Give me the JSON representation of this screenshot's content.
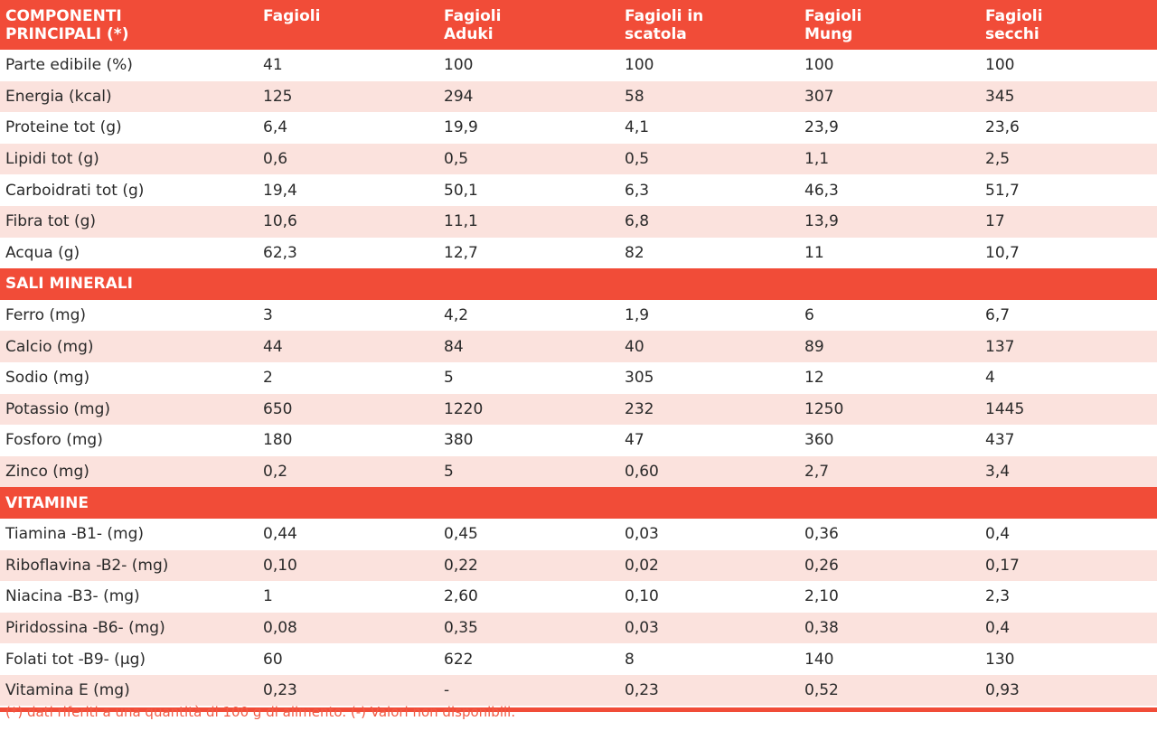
{
  "headers": [
    "COMPONENTI\nPRINCIPALI (*)",
    "Fagioli",
    "Fagioli\nAduki",
    "Fagioli in\nscatola",
    "Fagioli\nMung",
    "Fagioli\nsecchi"
  ],
  "main_rows": [
    [
      "Parte edibile (%)",
      "41",
      "100",
      "100",
      "100",
      "100"
    ],
    [
      "Energia (kcal)",
      "125",
      "294",
      "58",
      "307",
      "345"
    ],
    [
      "Proteine tot (g)",
      "6,4",
      "19,9",
      "4,1",
      "23,9",
      "23,6"
    ],
    [
      "Lipidi tot (g)",
      "0,6",
      "0,5",
      "0,5",
      "1,1",
      "2,5"
    ],
    [
      "Carboidrati tot (g)",
      "19,4",
      "50,1",
      "6,3",
      "46,3",
      "51,7"
    ],
    [
      "Fibra tot (g)",
      "10,6",
      "11,1",
      "6,8",
      "13,9",
      "17"
    ],
    [
      "Acqua (g)",
      "62,3",
      "12,7",
      "82",
      "11",
      "10,7"
    ]
  ],
  "section_minerals": "SALI MINERALI",
  "mineral_rows": [
    [
      "Ferro (mg)",
      "3",
      "4,2",
      "1,9",
      "6",
      "6,7"
    ],
    [
      "Calcio (mg)",
      "44",
      "84",
      "40",
      "89",
      "137"
    ],
    [
      "Sodio (mg)",
      "2",
      "5",
      "305",
      "12",
      "4"
    ],
    [
      "Potassio (mg)",
      "650",
      "1220",
      "232",
      "1250",
      "1445"
    ],
    [
      "Fosforo (mg)",
      "180",
      "380",
      "47",
      "360",
      "437"
    ],
    [
      "Zinco (mg)",
      "0,2",
      "5",
      "0,60",
      "2,7",
      "3,4"
    ]
  ],
  "section_vitamins": "VITAMINE",
  "vitamin_rows": [
    [
      "Tiamina -B1- (mg)",
      "0,44",
      "0,45",
      "0,03",
      "0,36",
      "0,4"
    ],
    [
      "Riboflavina -B2- (mg)",
      "0,10",
      "0,22",
      "0,02",
      "0,26",
      "0,17"
    ],
    [
      "Niacina -B3- (mg)",
      "1",
      "2,60",
      "0,10",
      "2,10",
      "2,3"
    ],
    [
      "Piridossina -B6- (mg)",
      "0,08",
      "0,35",
      "0,03",
      "0,38",
      "0,4"
    ],
    [
      "Folati tot -B9- (µg)",
      "60",
      "622",
      "8",
      "140",
      "130"
    ],
    [
      "Vitamina E (mg)",
      "0,23",
      "-",
      "0,23",
      "0,52",
      "0,93"
    ]
  ],
  "footnote": "(*) dati riferiti a una quantità di 100 g di alimento. (-) Valori non disponibili.",
  "colors": {
    "accent": "#f14c38",
    "stripe": "#fbe2dd"
  }
}
